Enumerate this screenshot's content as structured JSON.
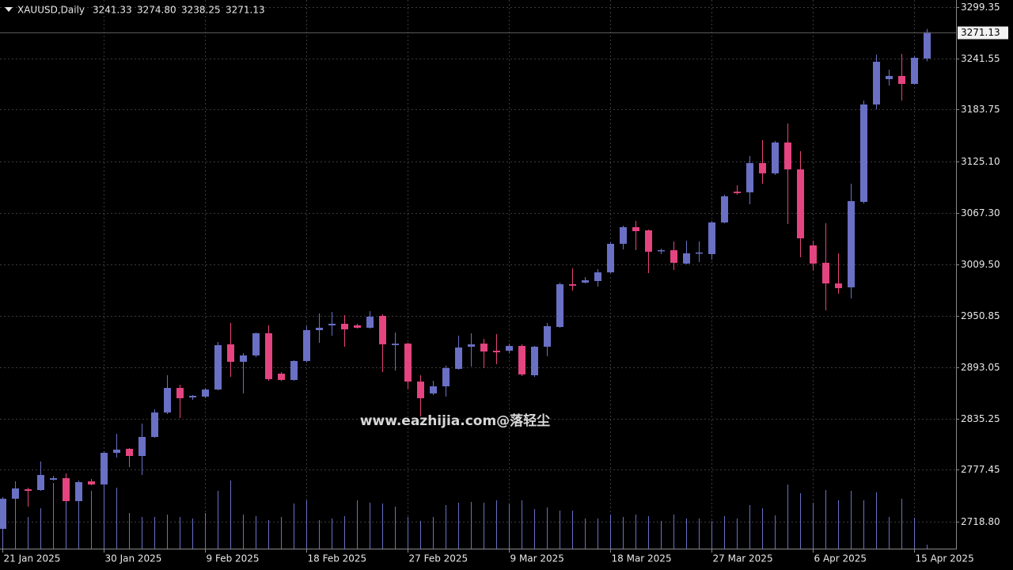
{
  "chart_data": {
    "type": "candlestick",
    "symbol": "XAUUSD,Daily",
    "last_bar_labels": {
      "open": "3241.33",
      "high": "3274.80",
      "low": "3238.25",
      "close": "3271.13"
    },
    "annotation": "www.eazhijia.com@落轻尘",
    "categories": [
      "21 Jan 2025",
      null,
      null,
      null,
      null,
      null,
      null,
      null,
      "30 Jan 2025",
      null,
      null,
      null,
      null,
      null,
      null,
      null,
      "9 Feb 2025",
      null,
      null,
      null,
      null,
      null,
      null,
      null,
      "18 Feb 2025",
      null,
      null,
      null,
      null,
      null,
      null,
      null,
      "27 Feb 2025",
      null,
      null,
      null,
      null,
      null,
      null,
      null,
      "9 Mar 2025",
      null,
      null,
      null,
      null,
      null,
      null,
      null,
      "18 Mar 2025",
      null,
      null,
      null,
      null,
      null,
      null,
      null,
      "27 Mar 2025",
      null,
      null,
      null,
      null,
      null,
      null,
      null,
      "6 Apr 2025",
      null,
      null,
      null,
      null,
      null,
      null,
      null,
      "15 Apr 2025",
      null
    ],
    "open": [
      2710.7,
      2744.7,
      2755.4,
      2754.5,
      2766.1,
      2767.9,
      2742.0,
      2764.3,
      2760.8,
      2796.5,
      2801.0,
      2792.9,
      2814.4,
      2842.0,
      2869.7,
      2859.0,
      2859.9,
      2867.9,
      2918.9,
      2899.2,
      2906.4,
      2931.4,
      2885.8,
      2878.7,
      2900.1,
      2934.9,
      2940.3,
      2942.1,
      2940.3,
      2937.6,
      2951.0,
      2918.0,
      2919.7,
      2876.9,
      2863.5,
      2871.5,
      2891.2,
      2916.2,
      2919.7,
      2911.7,
      2911.7,
      2917.1,
      2884.0,
      2916.2,
      2938.5,
      2986.7,
      2988.5,
      2990.3,
      3000.1,
      3032.3,
      3051.1,
      3047.5,
      3024.3,
      3025.1,
      3010.0,
      3021.6,
      3020.7,
      3056.4,
      3091.2,
      3090.4,
      3123.4,
      3111.8,
      3146.6,
      3116.3,
      3030.5,
      3010.9,
      2987.6,
      2983.2,
      3079.6,
      3189.5,
      3218.1,
      3221.7,
      3212.7,
      3241.33
    ],
    "high": [
      2746.5,
      2764.3,
      2757.2,
      2786.7,
      2770.6,
      2773.3,
      2765.2,
      2767.0,
      2798.3,
      2817.9,
      2801.8,
      2829.5,
      2845.6,
      2884.0,
      2873.3,
      2861.7,
      2869.7,
      2921.5,
      2943.0,
      2909.0,
      2932.3,
      2940.3,
      2887.6,
      2901.0,
      2939.4,
      2953.7,
      2955.5,
      2951.9,
      2942.1,
      2956.4,
      2952.8,
      2932.3,
      2920.6,
      2884.0,
      2877.8,
      2894.7,
      2928.7,
      2931.4,
      2925.1,
      2930.5,
      2919.7,
      2918.9,
      2917.1,
      2943.0,
      2988.5,
      3004.6,
      2994.8,
      3003.7,
      3034.1,
      3052.8,
      3058.2,
      3048.4,
      3026.9,
      3035.0,
      3035.9,
      3035.0,
      3058.2,
      3087.7,
      3098.4,
      3131.4,
      3149.3,
      3148.4,
      3168.1,
      3136.8,
      3035.9,
      3055.5,
      3021.6,
      3100.2,
      3194.0,
      3245.8,
      3228.8,
      3246.7,
      3244.0,
      3274.8
    ],
    "low": [
      2709.0,
      2735.8,
      2735.8,
      2753.6,
      2765.2,
      2741.1,
      2741.1,
      2759.9,
      2759.0,
      2791.1,
      2780.4,
      2771.5,
      2813.5,
      2840.3,
      2835.8,
      2856.3,
      2858.1,
      2867.1,
      2882.2,
      2863.5,
      2904.6,
      2877.8,
      2877.8,
      2877.8,
      2898.3,
      2920.6,
      2928.7,
      2916.2,
      2936.7,
      2936.7,
      2887.6,
      2889.4,
      2867.9,
      2837.6,
      2861.7,
      2859.9,
      2890.3,
      2893.9,
      2892.1,
      2896.5,
      2909.0,
      2883.1,
      2882.2,
      2905.5,
      2937.6,
      2979.6,
      2987.6,
      2984.1,
      2999.2,
      3026.0,
      3025.1,
      2999.2,
      3020.7,
      3002.8,
      3009.1,
      3011.8,
      3014.4,
      3055.5,
      3087.7,
      3077.0,
      3100.2,
      3110.0,
      3054.6,
      3017.1,
      3001.9,
      2957.3,
      2976.0,
      2970.7,
      3077.8,
      3184.1,
      3210.9,
      3194.0,
      3211.8,
      3238.25
    ],
    "close": [
      2744.7,
      2756.3,
      2753.6,
      2771.5,
      2767.9,
      2742.0,
      2763.4,
      2760.8,
      2796.5,
      2800.1,
      2792.9,
      2814.4,
      2842.0,
      2869.7,
      2858.1,
      2860.8,
      2867.9,
      2918.0,
      2899.2,
      2906.4,
      2931.4,
      2879.6,
      2878.7,
      2900.1,
      2934.9,
      2937.6,
      2942.1,
      2935.8,
      2937.6,
      2950.1,
      2918.9,
      2919.7,
      2876.9,
      2858.1,
      2871.5,
      2892.1,
      2915.3,
      2918.9,
      2910.8,
      2909.9,
      2917.1,
      2884.9,
      2916.2,
      2939.4,
      2986.7,
      2985.0,
      2991.2,
      3000.1,
      3032.3,
      3051.1,
      3046.6,
      3023.4,
      3025.1,
      3010.9,
      3021.6,
      3022.5,
      3056.4,
      3085.9,
      3089.5,
      3123.4,
      3111.8,
      3146.6,
      3116.3,
      3038.5,
      3010.0,
      2987.6,
      2982.3,
      3080.5,
      3189.5,
      3237.7,
      3221.7,
      3212.7,
      3242.2,
      3271.13
    ],
    "volume": [
      60,
      56,
      40,
      51,
      83,
      93,
      86,
      73,
      79,
      77,
      45,
      40,
      40,
      43,
      40,
      38,
      45,
      73,
      86,
      43,
      41,
      36,
      40,
      57,
      61,
      36,
      38,
      41,
      61,
      58,
      57,
      53,
      40,
      35,
      40,
      55,
      58,
      59,
      58,
      61,
      56,
      61,
      50,
      52,
      48,
      48,
      38,
      38,
      43,
      40,
      43,
      41,
      35,
      43,
      38,
      38,
      35,
      41,
      38,
      55,
      51,
      42,
      81,
      70,
      58,
      74,
      61,
      73,
      61,
      71,
      40,
      63,
      39,
      5
    ],
    "volume_lim": [
      0,
      100
    ],
    "colors": {
      "up": "#6a70c4",
      "down": "#e4447f",
      "volume": "#6a70c4"
    },
    "ylim": [
      2688.4,
      3307.4
    ],
    "yticks": [
      3299.35,
      3241.55,
      3183.75,
      {
        "value": 3125.1,
        "label": "3125.10"
      },
      {
        "value": 3067.3,
        "label": "3067.30"
      },
      {
        "value": 3009.5,
        "label": "3009.50"
      },
      2950.85,
      2893.05,
      2835.25,
      2777.45,
      {
        "value": 2718.8,
        "label": "2718.80"
      }
    ],
    "grid": true
  }
}
